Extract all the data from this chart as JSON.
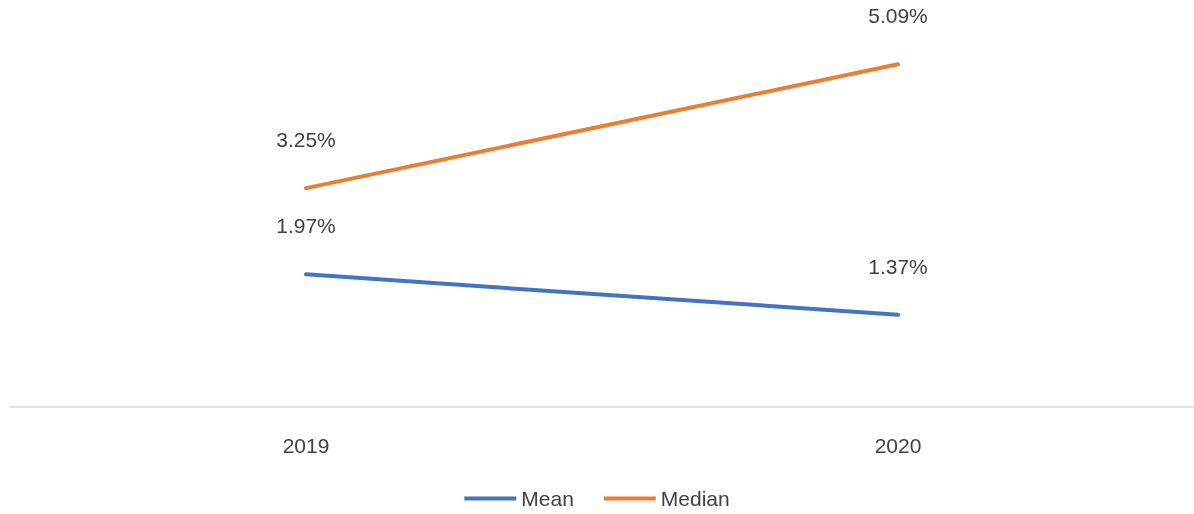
{
  "chart_data": {
    "type": "line",
    "categories": [
      "2019",
      "2020"
    ],
    "series": [
      {
        "name": "Mean",
        "color": "#4472c4",
        "values": [
          1.97,
          1.37
        ],
        "value_labels": [
          "1.97%",
          "1.37%"
        ]
      },
      {
        "name": "Median",
        "color": "#ed7d31",
        "values": [
          3.25,
          5.09
        ],
        "value_labels": [
          "3.25%",
          "5.09%"
        ]
      }
    ],
    "grid": false,
    "legend": "bottom",
    "marker": "none",
    "line_style": "solid"
  }
}
